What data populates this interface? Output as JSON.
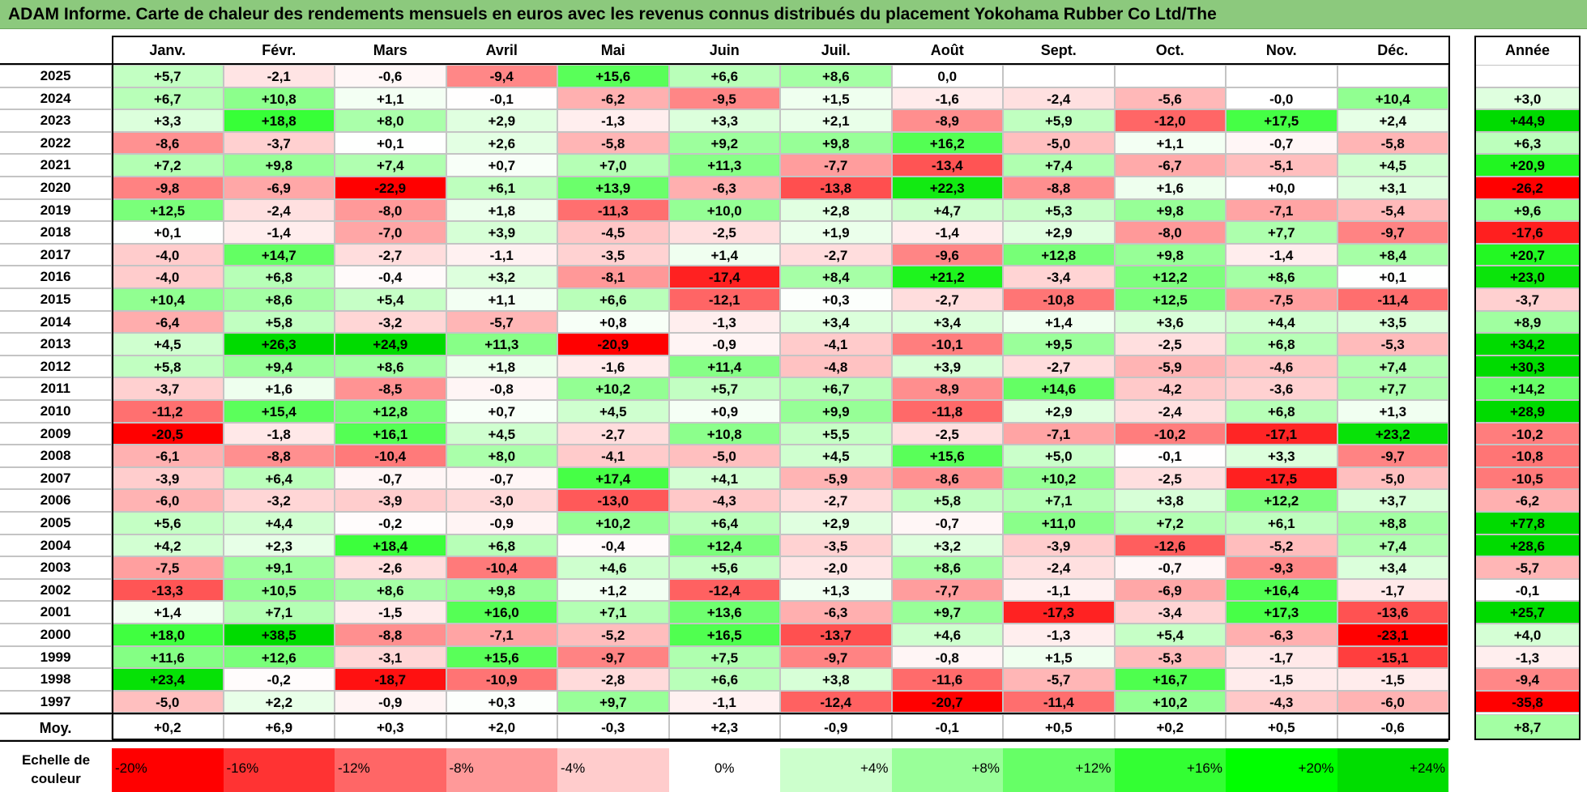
{
  "title": "ADAM Informe. Carte de chaleur des rendements mensuels en euros avec les revenus connus distribués du placement Yokohama Rubber Co Ltd/The",
  "chart_data": {
    "type": "heatmap",
    "columns": [
      "Janv.",
      "Févr.",
      "Mars",
      "Avril",
      "Mai",
      "Juin",
      "Juil.",
      "Août",
      "Sept.",
      "Oct.",
      "Nov.",
      "Déc."
    ],
    "year_column": "Année",
    "rows": [
      {
        "year": "2025",
        "values": [
          "+5,7",
          "-2,1",
          "-0,6",
          "-9,4",
          "+15,6",
          "+6,6",
          "+8,6",
          "0,0",
          "",
          "",
          "",
          ""
        ],
        "annual": ""
      },
      {
        "year": "2024",
        "values": [
          "+6,7",
          "+10,8",
          "+1,1",
          "-0,1",
          "-6,2",
          "-9,5",
          "+1,5",
          "-1,6",
          "-2,4",
          "-5,6",
          "-0,0",
          "+10,4"
        ],
        "annual": "+3,0"
      },
      {
        "year": "2023",
        "values": [
          "+3,3",
          "+18,8",
          "+8,0",
          "+2,9",
          "-1,3",
          "+3,3",
          "+2,1",
          "-8,9",
          "+5,9",
          "-12,0",
          "+17,5",
          "+2,4"
        ],
        "annual": "+44,9"
      },
      {
        "year": "2022",
        "values": [
          "-8,6",
          "-3,7",
          "+0,1",
          "+2,6",
          "-5,8",
          "+9,2",
          "+9,8",
          "+16,2",
          "-5,0",
          "+1,1",
          "-0,7",
          "-5,8"
        ],
        "annual": "+6,3"
      },
      {
        "year": "2021",
        "values": [
          "+7,2",
          "+9,8",
          "+7,4",
          "+0,7",
          "+7,0",
          "+11,3",
          "-7,7",
          "-13,4",
          "+7,4",
          "-6,7",
          "-5,1",
          "+4,5"
        ],
        "annual": "+20,9"
      },
      {
        "year": "2020",
        "values": [
          "-9,8",
          "-6,9",
          "-22,9",
          "+6,1",
          "+13,9",
          "-6,3",
          "-13,8",
          "+22,3",
          "-8,8",
          "+1,6",
          "+0,0",
          "+3,1"
        ],
        "annual": "-26,2"
      },
      {
        "year": "2019",
        "values": [
          "+12,5",
          "-2,4",
          "-8,0",
          "+1,8",
          "-11,3",
          "+10,0",
          "+2,8",
          "+4,7",
          "+5,3",
          "+9,8",
          "-7,1",
          "-5,4"
        ],
        "annual": "+9,6"
      },
      {
        "year": "2018",
        "values": [
          "+0,1",
          "-1,4",
          "-7,0",
          "+3,9",
          "-4,5",
          "-2,5",
          "+1,9",
          "-1,4",
          "+2,9",
          "-8,0",
          "+7,7",
          "-9,7"
        ],
        "annual": "-17,6"
      },
      {
        "year": "2017",
        "values": [
          "-4,0",
          "+14,7",
          "-2,7",
          "-1,1",
          "-3,5",
          "+1,4",
          "-2,7",
          "-9,6",
          "+12,8",
          "+9,8",
          "-1,4",
          "+8,4"
        ],
        "annual": "+20,7"
      },
      {
        "year": "2016",
        "values": [
          "-4,0",
          "+6,8",
          "-0,4",
          "+3,2",
          "-8,1",
          "-17,4",
          "+8,4",
          "+21,2",
          "-3,4",
          "+12,2",
          "+8,6",
          "+0,1"
        ],
        "annual": "+23,0"
      },
      {
        "year": "2015",
        "values": [
          "+10,4",
          "+8,6",
          "+5,4",
          "+1,1",
          "+6,6",
          "-12,1",
          "+0,3",
          "-2,7",
          "-10,8",
          "+12,5",
          "-7,5",
          "-11,4"
        ],
        "annual": "-3,7"
      },
      {
        "year": "2014",
        "values": [
          "-6,4",
          "+5,8",
          "-3,2",
          "-5,7",
          "+0,8",
          "-1,3",
          "+3,4",
          "+3,4",
          "+1,4",
          "+3,6",
          "+4,4",
          "+3,5"
        ],
        "annual": "+8,9"
      },
      {
        "year": "2013",
        "values": [
          "+4,5",
          "+26,3",
          "+24,9",
          "+11,3",
          "-20,9",
          "-0,9",
          "-4,1",
          "-10,1",
          "+9,5",
          "-2,5",
          "+6,8",
          "-5,3"
        ],
        "annual": "+34,2"
      },
      {
        "year": "2012",
        "values": [
          "+5,8",
          "+9,4",
          "+8,6",
          "+1,8",
          "-1,6",
          "+11,4",
          "-4,8",
          "+3,9",
          "-2,7",
          "-5,9",
          "-4,6",
          "+7,4"
        ],
        "annual": "+30,3"
      },
      {
        "year": "2011",
        "values": [
          "-3,7",
          "+1,6",
          "-8,5",
          "-0,8",
          "+10,2",
          "+5,7",
          "+6,7",
          "-8,9",
          "+14,6",
          "-4,2",
          "-3,6",
          "+7,7"
        ],
        "annual": "+14,2"
      },
      {
        "year": "2010",
        "values": [
          "-11,2",
          "+15,4",
          "+12,8",
          "+0,7",
          "+4,5",
          "+0,9",
          "+9,9",
          "-11,8",
          "+2,9",
          "-2,4",
          "+6,8",
          "+1,3"
        ],
        "annual": "+28,9"
      },
      {
        "year": "2009",
        "values": [
          "-20,5",
          "-1,8",
          "+16,1",
          "+4,5",
          "-2,7",
          "+10,8",
          "+5,5",
          "-2,5",
          "-7,1",
          "-10,2",
          "-17,1",
          "+23,2"
        ],
        "annual": "-10,2"
      },
      {
        "year": "2008",
        "values": [
          "-6,1",
          "-8,8",
          "-10,4",
          "+8,0",
          "-4,1",
          "-5,0",
          "+4,5",
          "+15,6",
          "+5,0",
          "-0,1",
          "+3,3",
          "-9,7"
        ],
        "annual": "-10,8"
      },
      {
        "year": "2007",
        "values": [
          "-3,9",
          "+6,4",
          "-0,7",
          "-0,7",
          "+17,4",
          "+4,1",
          "-5,9",
          "-8,6",
          "+10,2",
          "-2,5",
          "-17,5",
          "-5,0"
        ],
        "annual": "-10,5"
      },
      {
        "year": "2006",
        "values": [
          "-6,0",
          "-3,2",
          "-3,9",
          "-3,0",
          "-13,0",
          "-4,3",
          "-2,7",
          "+5,8",
          "+7,1",
          "+3,8",
          "+12,2",
          "+3,7"
        ],
        "annual": "-6,2"
      },
      {
        "year": "2005",
        "values": [
          "+5,6",
          "+4,4",
          "-0,2",
          "-0,9",
          "+10,2",
          "+6,4",
          "+2,9",
          "-0,7",
          "+11,0",
          "+7,2",
          "+6,1",
          "+8,8"
        ],
        "annual": "+77,8"
      },
      {
        "year": "2004",
        "values": [
          "+4,2",
          "+2,3",
          "+18,4",
          "+6,8",
          "-0,4",
          "+12,4",
          "-3,5",
          "+3,2",
          "-3,9",
          "-12,6",
          "-5,2",
          "+7,4"
        ],
        "annual": "+28,6"
      },
      {
        "year": "2003",
        "values": [
          "-7,5",
          "+9,1",
          "-2,6",
          "-10,4",
          "+4,6",
          "+5,6",
          "-2,0",
          "+8,6",
          "-2,4",
          "-0,7",
          "-9,3",
          "+3,4"
        ],
        "annual": "-5,7"
      },
      {
        "year": "2002",
        "values": [
          "-13,3",
          "+10,5",
          "+8,6",
          "+9,8",
          "+1,2",
          "-12,4",
          "+1,3",
          "-7,7",
          "-1,1",
          "-6,9",
          "+16,4",
          "-1,7"
        ],
        "annual": "-0,1"
      },
      {
        "year": "2001",
        "values": [
          "+1,4",
          "+7,1",
          "-1,5",
          "+16,0",
          "+7,1",
          "+13,6",
          "-6,3",
          "+9,7",
          "-17,3",
          "-3,4",
          "+17,3",
          "-13,6"
        ],
        "annual": "+25,7"
      },
      {
        "year": "2000",
        "values": [
          "+18,0",
          "+38,5",
          "-8,8",
          "-7,1",
          "-5,2",
          "+16,5",
          "-13,7",
          "+4,6",
          "-1,3",
          "+5,4",
          "-6,3",
          "-23,1"
        ],
        "annual": "+4,0"
      },
      {
        "year": "1999",
        "values": [
          "+11,6",
          "+12,6",
          "-3,1",
          "+15,6",
          "-9,7",
          "+7,5",
          "-9,7",
          "-0,8",
          "+1,5",
          "-5,3",
          "-1,7",
          "-15,1"
        ],
        "annual": "-1,3"
      },
      {
        "year": "1998",
        "values": [
          "+23,4",
          "-0,2",
          "-18,7",
          "-10,9",
          "-2,8",
          "+6,6",
          "+3,8",
          "-11,6",
          "-5,7",
          "+16,7",
          "-1,5",
          "-1,5"
        ],
        "annual": "-9,4"
      },
      {
        "year": "1997",
        "values": [
          "-5,0",
          "+2,2",
          "-0,9",
          "+0,3",
          "+9,7",
          "-1,1",
          "-12,4",
          "-20,7",
          "-11,4",
          "+10,2",
          "-4,3",
          "-6,0"
        ],
        "annual": "-35,8"
      }
    ],
    "average": {
      "label": "Moy.",
      "values": [
        "+0,2",
        "+6,9",
        "+0,3",
        "+2,0",
        "-0,3",
        "+2,3",
        "-0,9",
        "-0,1",
        "+0,5",
        "+0,2",
        "+0,5",
        "-0,6"
      ],
      "annual": "+8,7"
    },
    "scale": {
      "label": "Echelle de couleur",
      "stops": [
        {
          "label": "-20%",
          "value": -20,
          "color": "#ff0000"
        },
        {
          "label": "-16%",
          "value": -16,
          "color": "#ff3333"
        },
        {
          "label": "-12%",
          "value": -12,
          "color": "#ff6666"
        },
        {
          "label": "-8%",
          "value": -8,
          "color": "#ff9999"
        },
        {
          "label": "-4%",
          "value": -4,
          "color": "#ffcccc"
        },
        {
          "label": "0%",
          "value": 0,
          "color": "#ffffff"
        },
        {
          "label": "+4%",
          "value": 4,
          "color": "#ccffcc"
        },
        {
          "label": "+8%",
          "value": 8,
          "color": "#99ff99"
        },
        {
          "label": "+12%",
          "value": 12,
          "color": "#66ff66"
        },
        {
          "label": "+16%",
          "value": 16,
          "color": "#33ff33"
        },
        {
          "label": "+20%",
          "value": 20,
          "color": "#00ff00"
        },
        {
          "label": "+24%",
          "value": 24,
          "color": "#00dd00"
        }
      ]
    }
  }
}
